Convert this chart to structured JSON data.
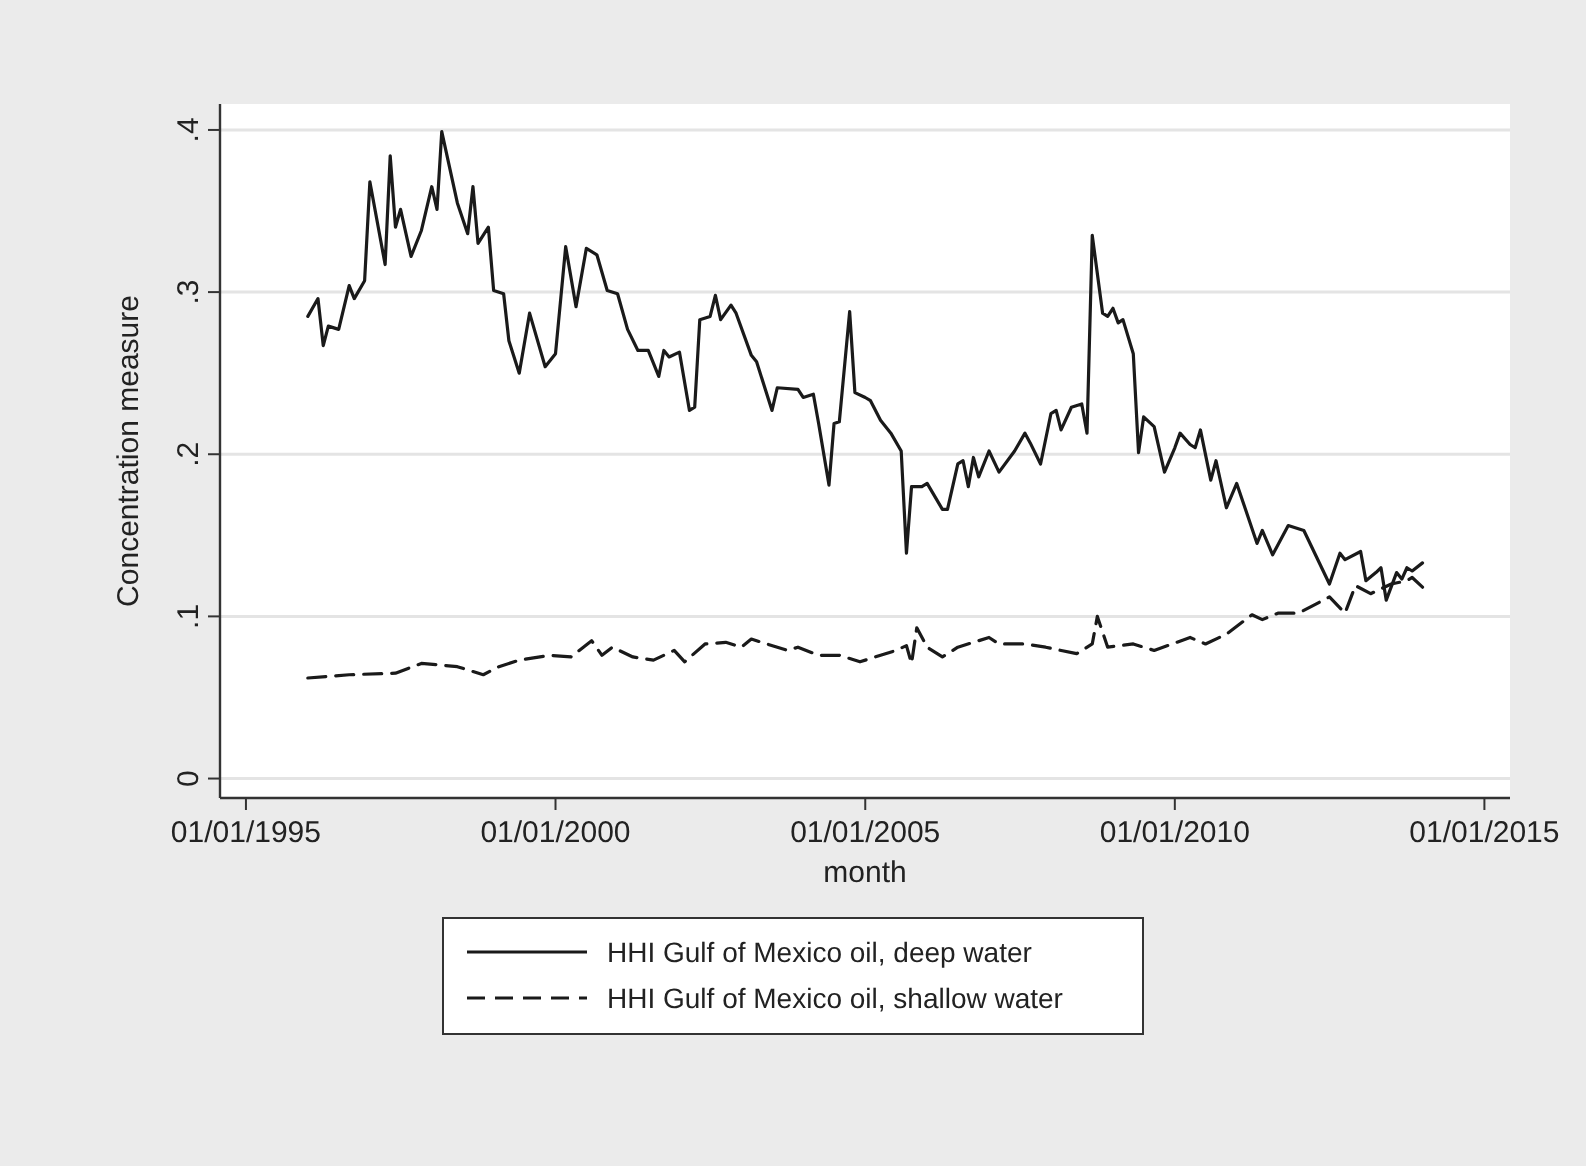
{
  "chart_data": {
    "type": "line",
    "xlabel": "month",
    "ylabel": "Concentration measure",
    "xlim": [
      "1994-08-01",
      "2015-06-01"
    ],
    "xticks": [
      {
        "value": "1995-01-01",
        "label": "01/01/1995"
      },
      {
        "value": "2000-01-01",
        "label": "01/01/2000"
      },
      {
        "value": "2005-01-01",
        "label": "01/01/2005"
      },
      {
        "value": "2010-01-01",
        "label": "01/01/2010"
      },
      {
        "value": "2015-01-01",
        "label": "01/01/2015"
      }
    ],
    "ylim": [
      -0.012,
      0.416
    ],
    "yticks": [
      0,
      {
        "value": 0.1,
        "label": ".1"
      },
      {
        "value": 0.2,
        "label": ".2"
      },
      {
        "value": 0.3,
        "label": ".3"
      },
      {
        "value": 0.4,
        "label": ".4"
      }
    ],
    "grid": "y",
    "legend": "bottom",
    "marker": "none",
    "series": [
      {
        "name": "HHI Gulf of Mexico oil, deep water",
        "color": "#1a1a1a",
        "line_style": "solid",
        "x": [
          "1996-01",
          "1996-03",
          "1996-04",
          "1996-05",
          "1996-07",
          "1996-09",
          "1996-10",
          "1996-12",
          "1997-01",
          "1997-04",
          "1997-05",
          "1997-06",
          "1997-07",
          "1997-09",
          "1997-11",
          "1998-01",
          "1998-02",
          "1998-03",
          "1998-06",
          "1998-08",
          "1998-09",
          "1998-10",
          "1998-12",
          "1999-01",
          "1999-03",
          "1999-04",
          "1999-06",
          "1999-08",
          "1999-11",
          "2000-01",
          "2000-03",
          "2000-05",
          "2000-07",
          "2000-09",
          "2000-11",
          "2001-01",
          "2001-03",
          "2001-05",
          "2001-07",
          "2001-09",
          "2001-10",
          "2001-11",
          "2002-01",
          "2002-03",
          "2002-04",
          "2002-05",
          "2002-07",
          "2002-08",
          "2002-09",
          "2002-11",
          "2002-12",
          "2003-03",
          "2003-04",
          "2003-07",
          "2003-08",
          "2003-12",
          "2004-01",
          "2004-03",
          "2004-04",
          "2004-06",
          "2004-07",
          "2004-08",
          "2004-10",
          "2004-11",
          "2005-01",
          "2005-02",
          "2005-04",
          "2005-06",
          "2005-08",
          "2005-09",
          "2005-10",
          "2005-12",
          "2006-01",
          "2006-04",
          "2006-05",
          "2006-07",
          "2006-08",
          "2006-09",
          "2006-10",
          "2006-11",
          "2007-01",
          "2007-03",
          "2007-06",
          "2007-08",
          "2007-09",
          "2007-11",
          "2008-01",
          "2008-02",
          "2008-03",
          "2008-05",
          "2008-07",
          "2008-08",
          "2008-09",
          "2008-11",
          "2008-12",
          "2009-01",
          "2009-02",
          "2009-03",
          "2009-05",
          "2009-06",
          "2009-07",
          "2009-09",
          "2009-11",
          "2010-01",
          "2010-02",
          "2010-04",
          "2010-05",
          "2010-06",
          "2010-08",
          "2010-09",
          "2010-11",
          "2011-01",
          "2011-05",
          "2011-06",
          "2011-08",
          "2011-11",
          "2012-02",
          "2012-07",
          "2012-09",
          "2012-10",
          "2013-01",
          "2013-02",
          "2013-04",
          "2013-05",
          "2013-06",
          "2013-08",
          "2013-09",
          "2013-10",
          "2013-11",
          "2014-01"
        ],
        "values": [
          0.285,
          0.296,
          0.267,
          0.279,
          0.277,
          0.304,
          0.296,
          0.307,
          0.368,
          0.317,
          0.384,
          0.34,
          0.351,
          0.322,
          0.338,
          0.365,
          0.351,
          0.399,
          0.355,
          0.336,
          0.365,
          0.33,
          0.34,
          0.301,
          0.299,
          0.27,
          0.25,
          0.287,
          0.254,
          0.262,
          0.328,
          0.291,
          0.327,
          0.323,
          0.301,
          0.299,
          0.277,
          0.264,
          0.264,
          0.248,
          0.264,
          0.26,
          0.263,
          0.227,
          0.229,
          0.283,
          0.285,
          0.298,
          0.283,
          0.292,
          0.287,
          0.261,
          0.257,
          0.227,
          0.241,
          0.24,
          0.235,
          0.237,
          0.219,
          0.181,
          0.219,
          0.22,
          0.288,
          0.238,
          0.235,
          0.233,
          0.221,
          0.213,
          0.202,
          0.139,
          0.18,
          0.18,
          0.182,
          0.166,
          0.166,
          0.194,
          0.196,
          0.18,
          0.198,
          0.186,
          0.202,
          0.189,
          0.202,
          0.213,
          0.207,
          0.194,
          0.225,
          0.227,
          0.215,
          0.229,
          0.231,
          0.213,
          0.335,
          0.287,
          0.285,
          0.29,
          0.281,
          0.283,
          0.262,
          0.201,
          0.223,
          0.217,
          0.189,
          0.204,
          0.213,
          0.206,
          0.204,
          0.215,
          0.184,
          0.196,
          0.167,
          0.182,
          0.145,
          0.153,
          0.138,
          0.156,
          0.153,
          0.12,
          0.139,
          0.135,
          0.14,
          0.122,
          0.127,
          0.13,
          0.11,
          0.127,
          0.123,
          0.13,
          0.128,
          0.133
        ]
      },
      {
        "name": "HHI Gulf of Mexico oil, shallow water",
        "color": "#1a1a1a",
        "line_style": "dashed",
        "x": [
          "1996-01",
          "1996-09",
          "1997-06",
          "1997-11",
          "1998-06",
          "1998-11",
          "1999-02",
          "1999-06",
          "1999-12",
          "2000-04",
          "2000-08",
          "2000-10",
          "2000-12",
          "2001-04",
          "2001-08",
          "2001-12",
          "2002-02",
          "2002-06",
          "2002-10",
          "2003-01",
          "2003-03",
          "2003-06",
          "2003-10",
          "2003-12",
          "2004-04",
          "2004-08",
          "2004-12",
          "2005-07",
          "2005-09",
          "2005-10",
          "2005-11",
          "2006-01",
          "2006-04",
          "2006-07",
          "2007-01",
          "2007-03",
          "2007-08",
          "2007-12",
          "2008-06",
          "2008-09",
          "2008-10",
          "2008-12",
          "2009-05",
          "2009-09",
          "2010-04",
          "2010-07",
          "2010-11",
          "2011-04",
          "2011-06",
          "2011-09",
          "2012-01",
          "2012-07",
          "2012-10",
          "2012-12",
          "2013-03",
          "2013-07",
          "2013-10",
          "2013-11",
          "2014-01"
        ],
        "values": [
          0.062,
          0.064,
          0.065,
          0.071,
          0.069,
          0.064,
          0.069,
          0.073,
          0.076,
          0.075,
          0.085,
          0.076,
          0.081,
          0.075,
          0.073,
          0.079,
          0.072,
          0.083,
          0.084,
          0.081,
          0.086,
          0.083,
          0.079,
          0.081,
          0.076,
          0.076,
          0.072,
          0.079,
          0.082,
          0.071,
          0.093,
          0.081,
          0.075,
          0.081,
          0.087,
          0.083,
          0.083,
          0.081,
          0.077,
          0.083,
          0.1,
          0.081,
          0.083,
          0.079,
          0.087,
          0.083,
          0.089,
          0.101,
          0.098,
          0.102,
          0.102,
          0.112,
          0.102,
          0.119,
          0.114,
          0.12,
          0.122,
          0.124,
          0.118
        ]
      }
    ]
  }
}
